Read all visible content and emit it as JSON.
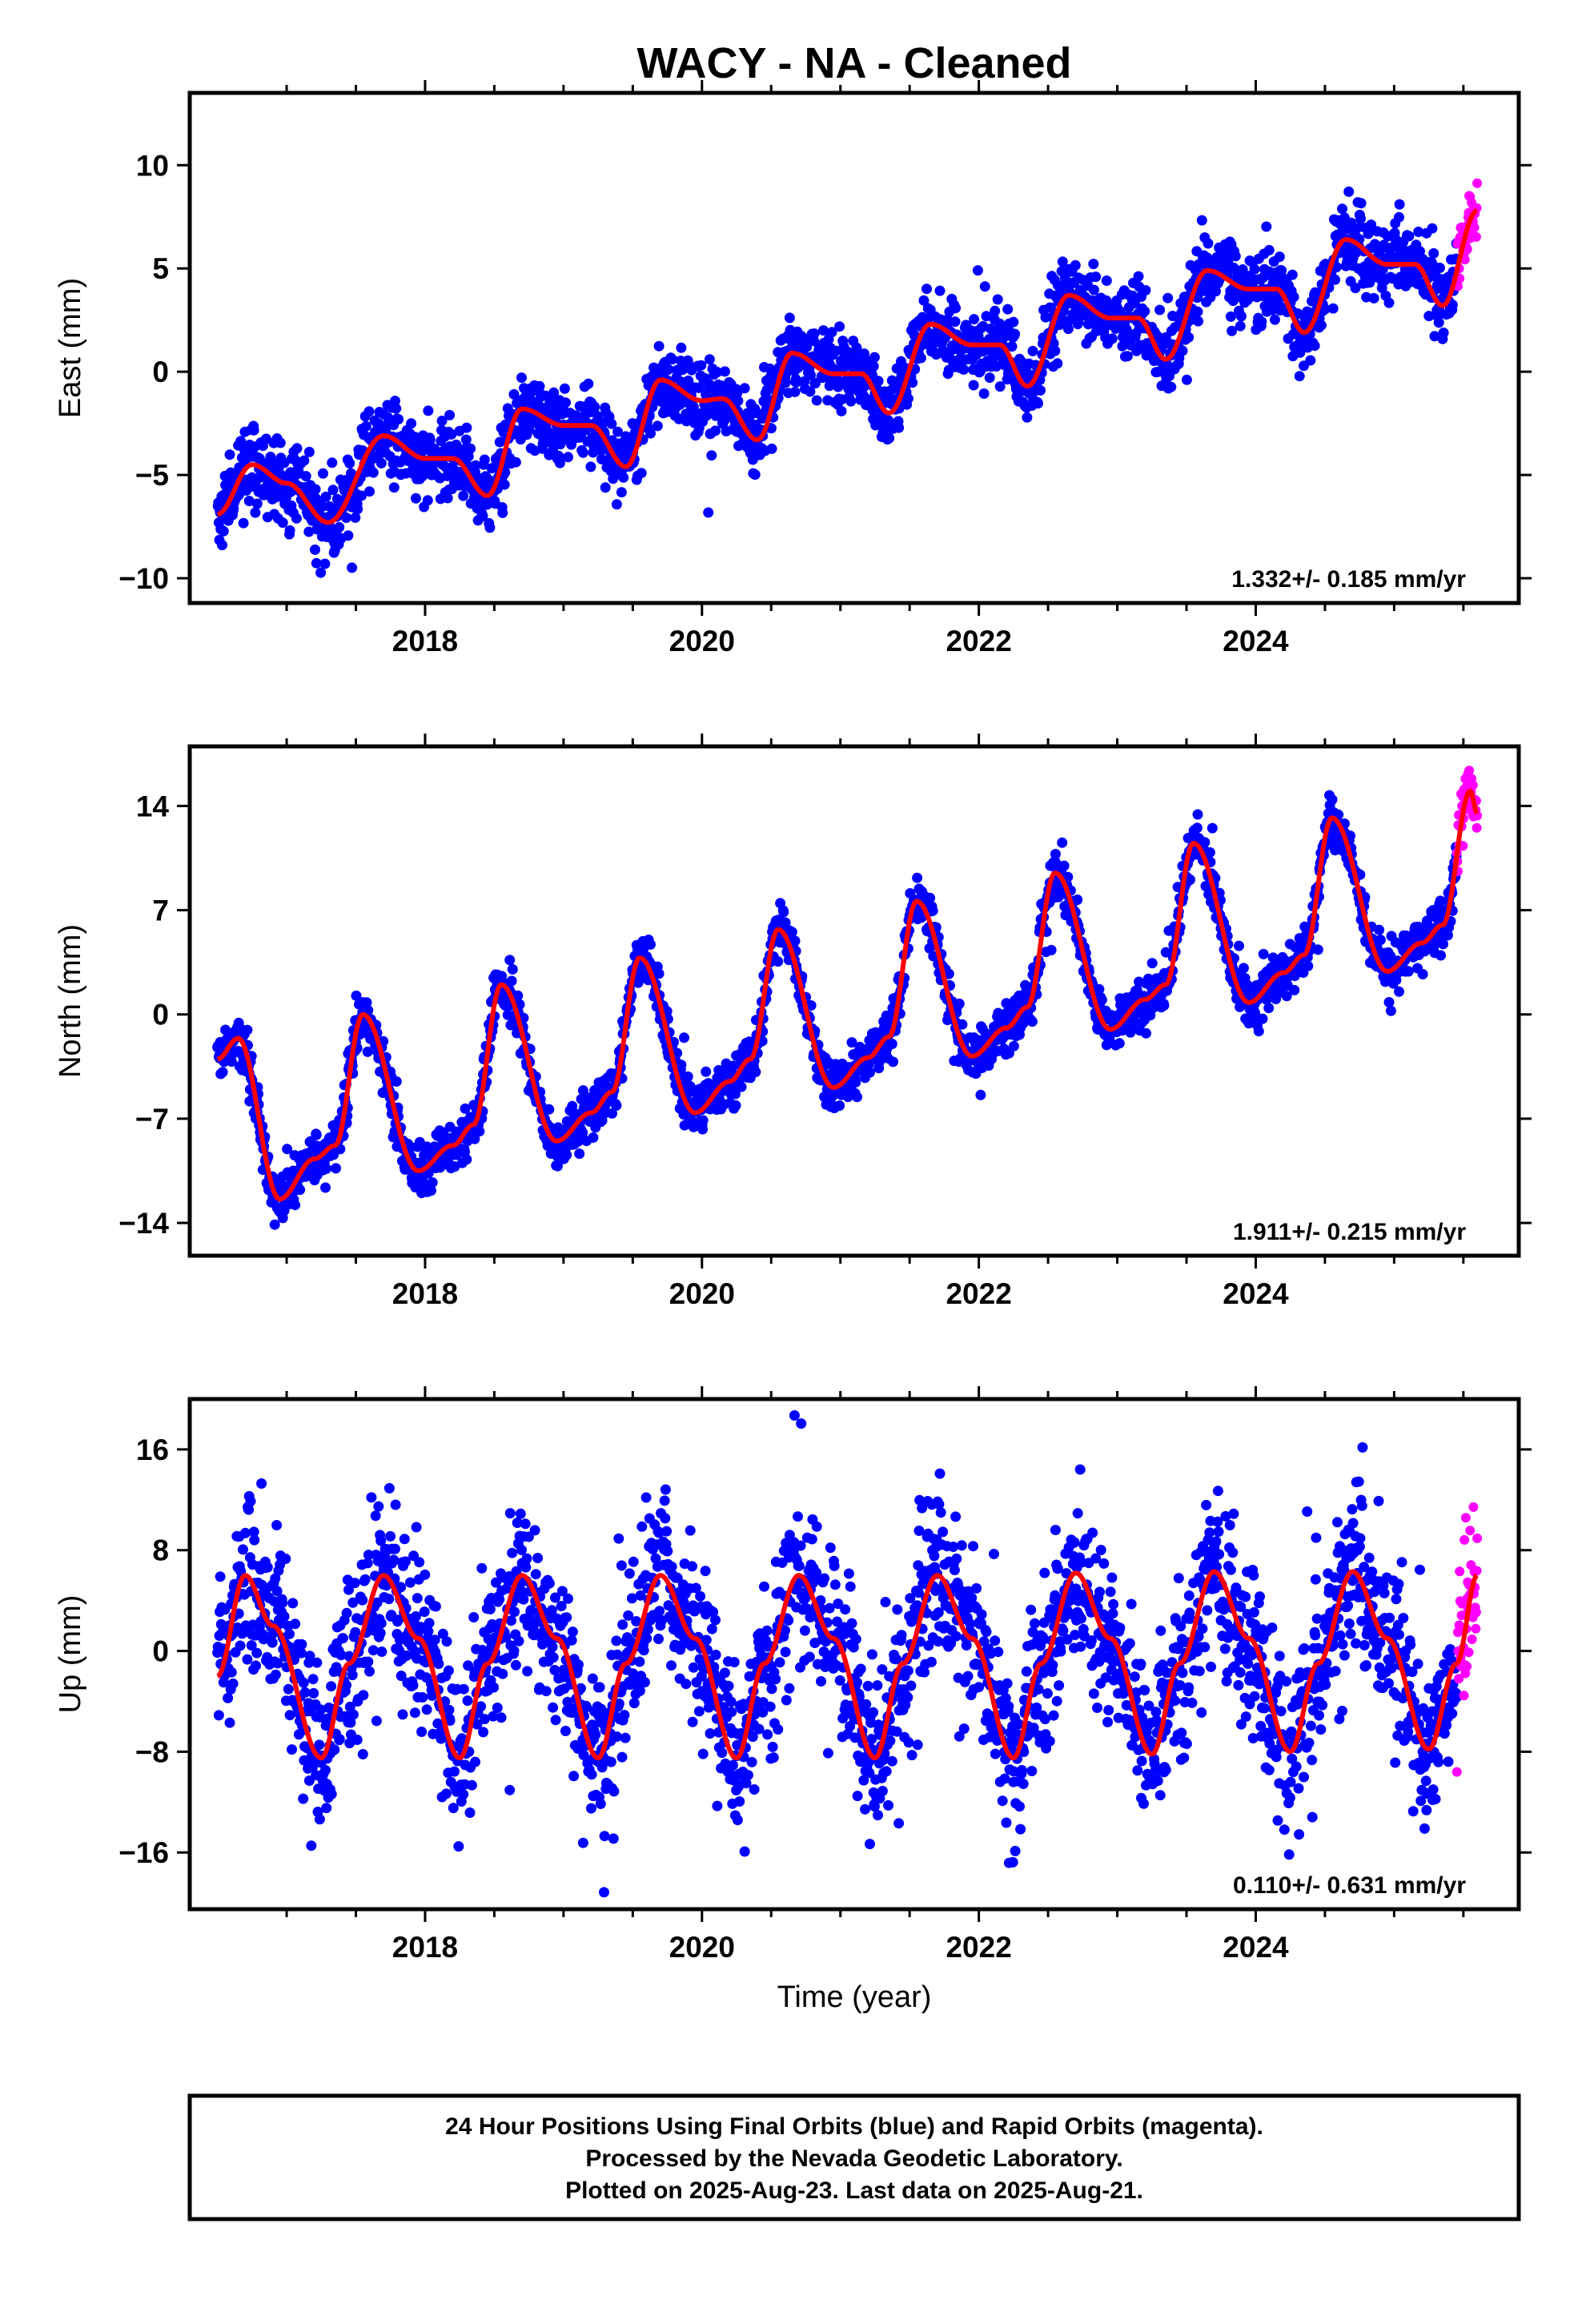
{
  "title": "WACY  - NA - Cleaned",
  "colors": {
    "final_orbits": "#0000ff",
    "rapid_orbits": "#ff00ff",
    "trend_line": "#ff0000",
    "frame": "#000000"
  },
  "x_axis_label": "Time (year)",
  "footer": {
    "line1": "24 Hour Positions Using Final Orbits (blue) and Rapid Orbits (magenta).",
    "line2": "Processed by the Nevada Geodetic Laboratory.",
    "line3": "Plotted on 2025-Aug-23. Last data on 2025-Aug-21."
  },
  "chart_data": [
    {
      "type": "scatter",
      "name": "east",
      "ylabel": "East (mm)",
      "xlim": [
        2016.3,
        2025.9
      ],
      "ylim": [
        -11.2,
        13.5
      ],
      "x_ticks": [
        2018,
        2020,
        2022,
        2024
      ],
      "y_ticks": [
        10,
        5,
        0,
        -5,
        -10
      ],
      "y_tick_labels": [
        "10",
        "5",
        "0",
        "−5",
        "−10"
      ],
      "rate_label": "1.332+/- 0.185 mm/yr",
      "model": {
        "start": 2016.5,
        "end": 2025.6,
        "rate_mm_per_yr": 1.332,
        "offset_mm": -5.6,
        "annual_amp": 1.1,
        "annual_phase": 1.6,
        "semiannual_amp": 0.5,
        "noise_sd": 0.9,
        "rapid_start": 2025.45
      },
      "trend_points": [
        [
          2016.5,
          -6.9
        ],
        [
          2016.75,
          -4.5
        ],
        [
          2017.0,
          -5.4
        ],
        [
          2017.3,
          -7.3
        ],
        [
          2017.7,
          -3.1
        ],
        [
          2018.0,
          -4.2
        ],
        [
          2018.2,
          -4.2
        ],
        [
          2018.45,
          -6.0
        ],
        [
          2018.7,
          -1.8
        ],
        [
          2019.0,
          -2.6
        ],
        [
          2019.2,
          -2.6
        ],
        [
          2019.45,
          -4.6
        ],
        [
          2019.7,
          -0.4
        ],
        [
          2020.0,
          -1.4
        ],
        [
          2020.15,
          -1.3
        ],
        [
          2020.4,
          -3.3
        ],
        [
          2020.65,
          0.9
        ],
        [
          2020.95,
          -0.1
        ],
        [
          2021.15,
          -0.1
        ],
        [
          2021.35,
          -2.0
        ],
        [
          2021.65,
          2.3
        ],
        [
          2021.95,
          1.3
        ],
        [
          2022.15,
          1.3
        ],
        [
          2022.35,
          -0.7
        ],
        [
          2022.65,
          3.7
        ],
        [
          2022.95,
          2.6
        ],
        [
          2023.15,
          2.6
        ],
        [
          2023.35,
          0.6
        ],
        [
          2023.65,
          4.9
        ],
        [
          2023.95,
          4.0
        ],
        [
          2024.15,
          4.0
        ],
        [
          2024.35,
          1.9
        ],
        [
          2024.65,
          6.4
        ],
        [
          2024.95,
          5.2
        ],
        [
          2025.15,
          5.2
        ],
        [
          2025.35,
          3.2
        ],
        [
          2025.6,
          7.8
        ]
      ]
    },
    {
      "type": "scatter",
      "name": "north",
      "ylabel": "North (mm)",
      "xlim": [
        2016.3,
        2025.9
      ],
      "ylim": [
        -16.2,
        18.0
      ],
      "x_ticks": [
        2018,
        2020,
        2022,
        2024
      ],
      "y_ticks": [
        14,
        7,
        0,
        -7,
        -14
      ],
      "y_tick_labels": [
        "14",
        "7",
        "0",
        "−7",
        "−14"
      ],
      "rate_label": "1.911+/- 0.215 mm/yr",
      "model": {
        "start": 2016.5,
        "end": 2025.6,
        "rate_mm_per_yr": 1.911,
        "offset_mm": -8.0,
        "annual_amp": 5.8,
        "annual_phase": 0.0,
        "semiannual_amp": 0.8,
        "noise_sd": 0.8,
        "rapid_start": 2025.45
      },
      "trend_points": [
        [
          2016.5,
          -3.0
        ],
        [
          2016.65,
          -1.6
        ],
        [
          2016.95,
          -12.4
        ],
        [
          2017.2,
          -9.7
        ],
        [
          2017.35,
          -8.8
        ],
        [
          2017.55,
          0.0
        ],
        [
          2017.95,
          -10.5
        ],
        [
          2018.2,
          -8.8
        ],
        [
          2018.35,
          -7.4
        ],
        [
          2018.55,
          2.0
        ],
        [
          2018.95,
          -8.5
        ],
        [
          2019.2,
          -6.6
        ],
        [
          2019.35,
          -5.2
        ],
        [
          2019.55,
          3.8
        ],
        [
          2019.95,
          -6.6
        ],
        [
          2020.2,
          -4.5
        ],
        [
          2020.35,
          -3.0
        ],
        [
          2020.55,
          5.7
        ],
        [
          2020.95,
          -4.9
        ],
        [
          2021.2,
          -2.9
        ],
        [
          2021.35,
          -1.5
        ],
        [
          2021.55,
          7.6
        ],
        [
          2021.95,
          -2.8
        ],
        [
          2022.2,
          -0.9
        ],
        [
          2022.35,
          0.5
        ],
        [
          2022.55,
          9.5
        ],
        [
          2022.95,
          -1.0
        ],
        [
          2023.2,
          1.0
        ],
        [
          2023.35,
          2.0
        ],
        [
          2023.55,
          11.5
        ],
        [
          2023.95,
          0.8
        ],
        [
          2024.2,
          2.8
        ],
        [
          2024.35,
          4.0
        ],
        [
          2024.55,
          13.2
        ],
        [
          2024.95,
          2.9
        ],
        [
          2025.2,
          4.8
        ],
        [
          2025.35,
          6.0
        ],
        [
          2025.55,
          15.0
        ],
        [
          2025.6,
          13.5
        ]
      ]
    },
    {
      "type": "scatter",
      "name": "up",
      "ylabel": "Up (mm)",
      "xlim": [
        2016.3,
        2025.9
      ],
      "ylim": [
        -20.5,
        20.0
      ],
      "x_ticks": [
        2018,
        2020,
        2022,
        2024
      ],
      "y_ticks": [
        16,
        8,
        0,
        -8,
        -16
      ],
      "y_tick_labels": [
        "16",
        "8",
        "0",
        "−8",
        "−16"
      ],
      "rate_label": "0.110+/- 0.631 mm/yr",
      "model": {
        "start": 2016.5,
        "end": 2025.6,
        "rate_mm_per_yr": 0.11,
        "offset_mm": -1.0,
        "annual_amp": 7.0,
        "annual_phase": 0.0,
        "semiannual_amp": 0.6,
        "noise_sd": 3.3,
        "rapid_start": 2025.45
      },
      "trend_points": [
        [
          2016.5,
          -2.0
        ],
        [
          2016.7,
          6.0
        ],
        [
          2016.9,
          2.0
        ],
        [
          2017.25,
          -8.5
        ],
        [
          2017.45,
          -1.0
        ],
        [
          2017.7,
          6.0
        ],
        [
          2017.95,
          1.0
        ],
        [
          2018.25,
          -8.5
        ],
        [
          2018.45,
          -1.0
        ],
        [
          2018.7,
          6.0
        ],
        [
          2018.95,
          1.0
        ],
        [
          2019.25,
          -8.5
        ],
        [
          2019.45,
          -1.0
        ],
        [
          2019.7,
          6.0
        ],
        [
          2019.95,
          1.0
        ],
        [
          2020.25,
          -8.5
        ],
        [
          2020.45,
          -1.0
        ],
        [
          2020.7,
          6.0
        ],
        [
          2020.95,
          1.0
        ],
        [
          2021.25,
          -8.5
        ],
        [
          2021.45,
          -1.0
        ],
        [
          2021.7,
          6.0
        ],
        [
          2021.95,
          1.0
        ],
        [
          2022.25,
          -8.5
        ],
        [
          2022.45,
          -1.0
        ],
        [
          2022.7,
          6.2
        ],
        [
          2022.95,
          1.0
        ],
        [
          2023.25,
          -8.2
        ],
        [
          2023.45,
          -1.0
        ],
        [
          2023.7,
          6.3
        ],
        [
          2023.95,
          1.0
        ],
        [
          2024.25,
          -8.0
        ],
        [
          2024.45,
          -1.0
        ],
        [
          2024.7,
          6.3
        ],
        [
          2024.95,
          1.0
        ],
        [
          2025.25,
          -7.8
        ],
        [
          2025.45,
          -1.0
        ],
        [
          2025.6,
          6.0
        ]
      ]
    }
  ]
}
